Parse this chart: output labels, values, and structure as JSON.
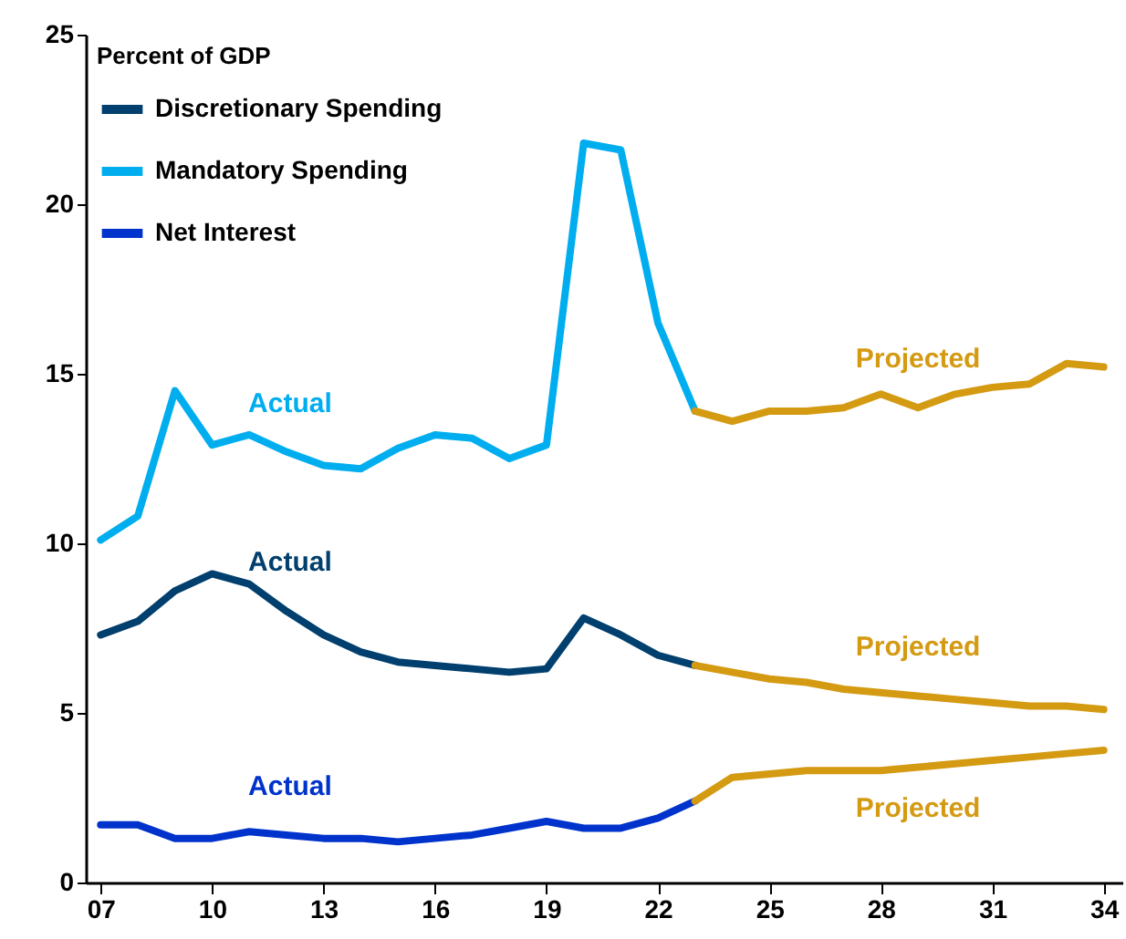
{
  "chart_data": {
    "type": "line",
    "legend_title": "Percent of GDP",
    "legend": "top left",
    "grid": false,
    "xlim": [
      2006.6,
      2034.5
    ],
    "xticks": [
      {
        "value": 2007,
        "label": "07"
      },
      {
        "value": 2010,
        "label": "10"
      },
      {
        "value": 2013,
        "label": "13"
      },
      {
        "value": 2016,
        "label": "16"
      },
      {
        "value": 2019,
        "label": "19"
      },
      {
        "value": 2022,
        "label": "22"
      },
      {
        "value": 2025,
        "label": "25"
      },
      {
        "value": 2028,
        "label": "28"
      },
      {
        "value": 2031,
        "label": "31"
      },
      {
        "value": 2034,
        "label": "34"
      }
    ],
    "ylim": [
      0,
      25
    ],
    "yticks": [
      0,
      5,
      10,
      15,
      20,
      25
    ],
    "series": [
      {
        "name": "Discretionary Spending",
        "color": "#003f6e",
        "x": [
          2007,
          2008,
          2009,
          2010,
          2011,
          2012,
          2013,
          2014,
          2015,
          2016,
          2017,
          2018,
          2019,
          2020,
          2021,
          2022,
          2023
        ],
        "values": [
          7.3,
          7.7,
          8.6,
          9.1,
          8.8,
          8.0,
          7.3,
          6.8,
          6.5,
          6.4,
          6.3,
          6.2,
          6.3,
          7.8,
          7.3,
          6.7,
          6.4
        ]
      },
      {
        "name": "Mandatory Spending",
        "color": "#00aeef",
        "x": [
          2007,
          2008,
          2009,
          2010,
          2011,
          2012,
          2013,
          2014,
          2015,
          2016,
          2017,
          2018,
          2019,
          2020,
          2021,
          2022,
          2023
        ],
        "values": [
          10.1,
          10.8,
          14.5,
          12.9,
          13.2,
          12.7,
          12.3,
          12.2,
          12.8,
          13.2,
          13.1,
          12.5,
          12.9,
          21.8,
          21.6,
          16.5,
          13.9
        ]
      },
      {
        "name": "Net Interest",
        "color": "#0033cc",
        "x": [
          2007,
          2008,
          2009,
          2010,
          2011,
          2012,
          2013,
          2014,
          2015,
          2016,
          2017,
          2018,
          2019,
          2020,
          2021,
          2022,
          2023
        ],
        "values": [
          1.7,
          1.7,
          1.3,
          1.3,
          1.5,
          1.4,
          1.3,
          1.3,
          1.2,
          1.3,
          1.4,
          1.6,
          1.8,
          1.6,
          1.6,
          1.9,
          2.4
        ]
      },
      {
        "color": "#d49a12",
        "x": [
          2023,
          2024,
          2025,
          2026,
          2027,
          2028,
          2029,
          2030,
          2031,
          2032,
          2033,
          2034
        ],
        "values": [
          6.4,
          6.2,
          6.0,
          5.9,
          5.7,
          5.6,
          5.5,
          5.4,
          5.3,
          5.2,
          5.2,
          5.1
        ]
      },
      {
        "color": "#d49a12",
        "x": [
          2023,
          2024,
          2025,
          2026,
          2027,
          2028,
          2029,
          2030,
          2031,
          2032,
          2033,
          2034
        ],
        "values": [
          13.9,
          13.6,
          13.9,
          13.9,
          14.0,
          14.4,
          14.0,
          14.4,
          14.6,
          14.7,
          15.3,
          15.2
        ]
      },
      {
        "color": "#d49a12",
        "x": [
          2023,
          2024,
          2025,
          2026,
          2027,
          2028,
          2029,
          2030,
          2031,
          2032,
          2033,
          2034
        ],
        "values": [
          2.4,
          3.1,
          3.2,
          3.3,
          3.3,
          3.3,
          3.4,
          3.5,
          3.6,
          3.7,
          3.8,
          3.9
        ]
      }
    ],
    "annotations": [
      "Actual",
      "Actual",
      "Actual",
      "Projected",
      "Projected",
      "Projected"
    ]
  }
}
